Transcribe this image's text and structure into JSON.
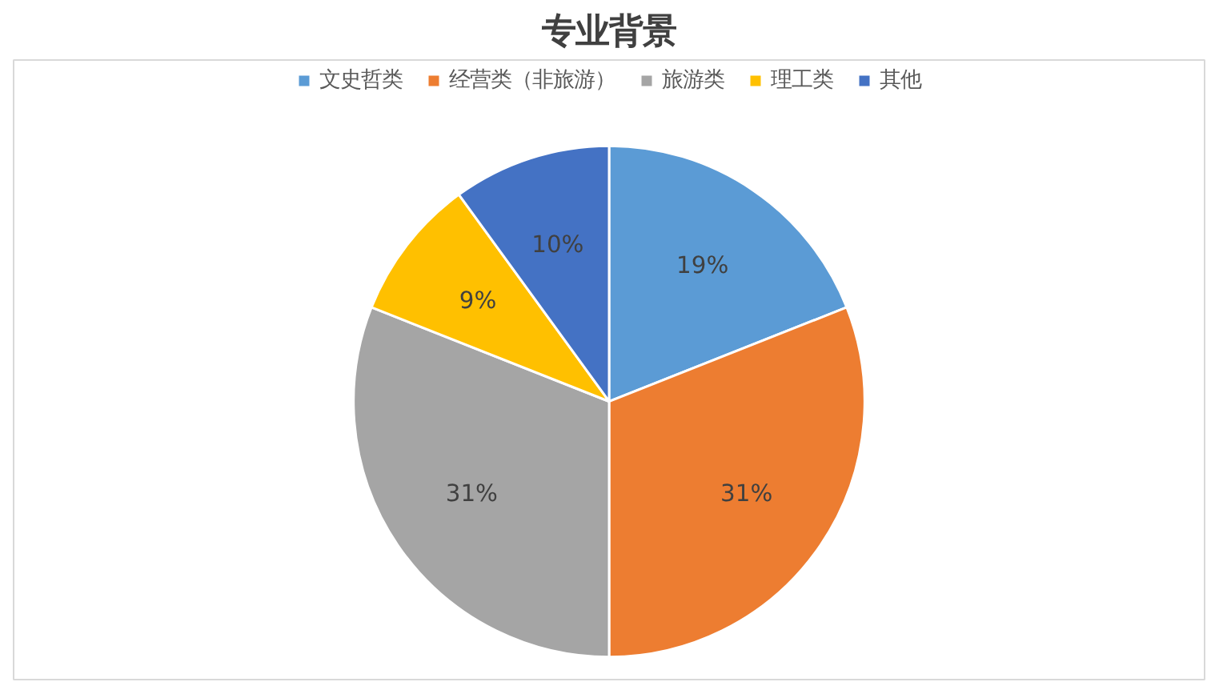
{
  "chart_data": {
    "type": "pie",
    "title": "专业背景",
    "categories": [
      "文史哲类",
      "经营类（非旅游）",
      "旅游类",
      "理工类",
      "其他"
    ],
    "values": [
      19,
      31,
      31,
      9,
      10
    ],
    "colors": [
      "#5b9bd5",
      "#ed7d31",
      "#a5a5a5",
      "#ffc000",
      "#4472c4"
    ],
    "value_labels": [
      "19%",
      "31%",
      "31%",
      "9%",
      "10%"
    ],
    "legend": "top"
  }
}
